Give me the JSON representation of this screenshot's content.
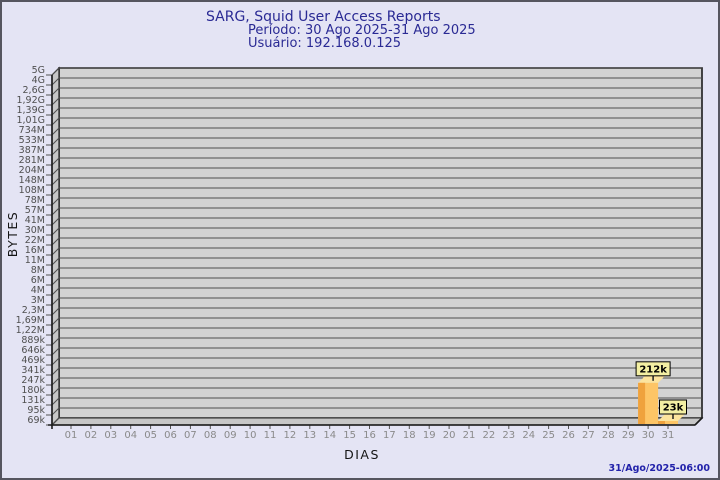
{
  "chart_data": {
    "type": "bar",
    "title": "SARG, Squid User Access Reports",
    "period": "Período: 30 Ago 2025-31 Ago 2025",
    "user": "Usuário: 192.168.0.125",
    "xlabel": "DIAS",
    "ylabel": "BYTES",
    "footer_timestamp": "31/Ago/2025-06:00",
    "y_scale": "log",
    "grid": "horizontal",
    "legend": "none",
    "style": "3d-bar",
    "y_ticks": [
      "5G",
      "4G",
      "2,6G",
      "1,92G",
      "1,39G",
      "1,01G",
      "734M",
      "533M",
      "387M",
      "281M",
      "204M",
      "148M",
      "108M",
      "78M",
      "57M",
      "41M",
      "30M",
      "22M",
      "16M",
      "11M",
      "8M",
      "6M",
      "4M",
      "3M",
      "2,3M",
      "1,69M",
      "1,22M",
      "889k",
      "646k",
      "469k",
      "341k",
      "247k",
      "180k",
      "131k",
      "95k",
      "69k"
    ],
    "y_tick_bytes": [
      5000000000.0,
      4000000000.0,
      2600000000.0,
      1920000000.0,
      1390000000.0,
      1010000000.0,
      734000000.0,
      533000000.0,
      387000000.0,
      281000000.0,
      204000000.0,
      148000000.0,
      108000000.0,
      78000000.0,
      57000000.0,
      41000000.0,
      30000000.0,
      22000000.0,
      16000000.0,
      11000000.0,
      8000000.0,
      6000000.0,
      4000000.0,
      3000000.0,
      2300000.0,
      1690000.0,
      1220000.0,
      889000,
      646000,
      469000,
      341000,
      247000,
      180000,
      131000,
      95000,
      69000
    ],
    "x_ticks": [
      "01",
      "02",
      "03",
      "04",
      "05",
      "06",
      "07",
      "08",
      "09",
      "10",
      "11",
      "12",
      "13",
      "14",
      "15",
      "16",
      "17",
      "18",
      "19",
      "20",
      "21",
      "22",
      "23",
      "24",
      "25",
      "26",
      "27",
      "28",
      "29",
      "30",
      "31"
    ],
    "bars": [
      {
        "day": "30",
        "label": "212k",
        "bytes": 212000
      },
      {
        "day": "31",
        "label": "23k",
        "bytes": 23000
      }
    ],
    "colors": {
      "background": "#e4e4f4",
      "heading_text": "#2a2a94",
      "footer_text": "#2222aa",
      "plot_back_wall": "#d3d3d3",
      "plot_side_wall": "#c7c7c7",
      "gridline": "#4f4f4f",
      "frame_edge": "#1c1c1c",
      "bar_front": "#fdc566",
      "bar_side": "#efa23d",
      "bar_top": "#fce49e",
      "value_box_fill": "#f3efa3",
      "value_box_border": "#000000"
    }
  }
}
